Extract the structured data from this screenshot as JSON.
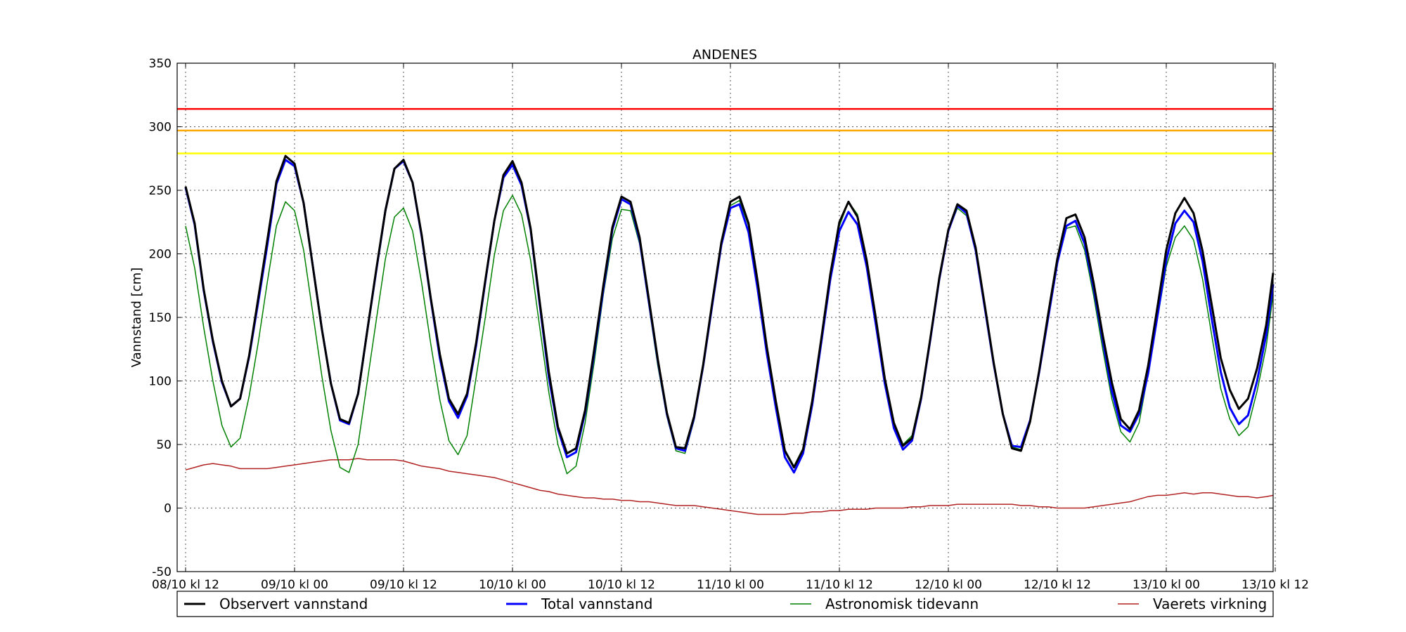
{
  "chart_data": {
    "type": "line",
    "title": "ANDENES",
    "xlabel": "",
    "ylabel": "Vannstand [cm]",
    "ylim": [
      -50,
      350
    ],
    "yticks": [
      -50,
      0,
      50,
      100,
      150,
      200,
      250,
      300,
      350
    ],
    "xlim_hours": [
      0,
      121
    ],
    "xtick_labels": [
      "08/10 kl 12",
      "09/10 kl 00",
      "09/10 kl 12",
      "10/10 kl 00",
      "10/10 kl 12",
      "11/10 kl 00",
      "11/10 kl 12",
      "12/10 kl 00",
      "12/10 kl 12",
      "13/10 kl 00",
      "13/10 kl 12"
    ],
    "grid": true,
    "legend_position": "bottom",
    "thresholds": [
      {
        "value": 314,
        "color": "#ff0000"
      },
      {
        "value": 297,
        "color": "#ffa500"
      },
      {
        "value": 279,
        "color": "#ffff00"
      }
    ],
    "series": [
      {
        "name": "Observert vannstand",
        "color": "#000000",
        "width": 3,
        "step_hours": 1,
        "values": [
          253,
          224,
          172,
          132,
          100,
          80,
          86,
          120,
          165,
          211,
          257,
          277,
          271,
          240,
          191,
          141,
          98,
          70,
          67,
          90,
          139,
          188,
          234,
          267,
          274,
          256,
          215,
          165,
          121,
          86,
          74,
          90,
          130,
          179,
          226,
          262,
          273,
          256,
          220,
          162,
          107,
          64,
          43,
          47,
          77,
          125,
          175,
          221,
          245,
          241,
          213,
          165,
          117,
          75,
          48,
          47,
          72,
          113,
          162,
          209,
          241,
          245,
          224,
          178,
          127,
          84,
          45,
          32,
          46,
          84,
          133,
          184,
          225,
          241,
          229,
          195,
          150,
          102,
          67,
          49,
          55,
          87,
          133,
          181,
          219,
          239,
          234,
          205,
          160,
          114,
          74,
          47,
          45,
          68,
          108,
          153,
          196,
          228,
          231,
          213,
          177,
          136,
          99,
          70,
          62,
          77,
          112,
          157,
          203,
          232,
          244,
          232,
          202,
          160,
          118,
          93,
          78,
          86,
          110,
          144,
          185
        ]
      },
      {
        "name": "Total vannstand",
        "color": "#0000ff",
        "width": 3,
        "step_hours": 1,
        "values": [
          252,
          223,
          171,
          131,
          99,
          80,
          86,
          119,
          162,
          207,
          255,
          274,
          269,
          240,
          191,
          141,
          98,
          69,
          66,
          90,
          139,
          187,
          234,
          267,
          273,
          256,
          214,
          164,
          118,
          84,
          71,
          88,
          128,
          178,
          226,
          260,
          270,
          254,
          219,
          160,
          103,
          62,
          40,
          44,
          75,
          122,
          172,
          219,
          243,
          239,
          211,
          163,
          116,
          74,
          47,
          45,
          71,
          112,
          160,
          207,
          236,
          239,
          217,
          172,
          122,
          79,
          40,
          28,
          43,
          81,
          130,
          180,
          218,
          233,
          223,
          190,
          145,
          98,
          63,
          46,
          53,
          86,
          132,
          180,
          218,
          238,
          232,
          203,
          158,
          113,
          74,
          49,
          48,
          69,
          107,
          150,
          193,
          222,
          226,
          208,
          173,
          132,
          92,
          65,
          60,
          74,
          106,
          150,
          195,
          224,
          234,
          225,
          194,
          149,
          107,
          79,
          66,
          73,
          100,
          136,
          176
        ]
      },
      {
        "name": "Astronomisk tidevann",
        "color": "#008000",
        "width": 1.5,
        "step_hours": 1,
        "values": [
          222,
          189,
          142,
          100,
          65,
          48,
          55,
          88,
          130,
          178,
          222,
          241,
          234,
          203,
          154,
          104,
          61,
          32,
          28,
          50,
          99,
          148,
          196,
          229,
          236,
          218,
          177,
          129,
          85,
          53,
          42,
          57,
          103,
          150,
          199,
          234,
          246,
          231,
          195,
          142,
          91,
          50,
          27,
          33,
          67,
          115,
          168,
          212,
          235,
          234,
          208,
          160,
          112,
          72,
          45,
          43,
          69,
          110,
          159,
          207,
          238,
          242,
          222,
          176,
          127,
          83,
          46,
          33,
          47,
          85,
          133,
          183,
          222,
          241,
          231,
          196,
          151,
          103,
          68,
          50,
          57,
          89,
          134,
          183,
          218,
          236,
          230,
          202,
          158,
          113,
          74,
          48,
          46,
          69,
          107,
          153,
          193,
          220,
          222,
          203,
          167,
          125,
          86,
          60,
          52,
          67,
          106,
          148,
          190,
          213,
          222,
          211,
          180,
          136,
          94,
          70,
          57,
          64,
          92,
          127,
          168
        ]
      },
      {
        "name": "Vaerets virkning",
        "color": "#b22222",
        "width": 1.5,
        "step_hours": 1,
        "values": [
          30,
          32,
          34,
          35,
          34,
          33,
          31,
          31,
          31,
          31,
          32,
          33,
          34,
          35,
          36,
          37,
          38,
          38,
          38,
          39,
          38,
          38,
          38,
          38,
          37,
          35,
          33,
          32,
          31,
          29,
          28,
          27,
          26,
          25,
          24,
          22,
          20,
          18,
          16,
          14,
          13,
          11,
          10,
          9,
          8,
          8,
          7,
          7,
          6,
          6,
          5,
          5,
          4,
          3,
          2,
          2,
          2,
          1,
          0,
          -1,
          -2,
          -3,
          -4,
          -5,
          -5,
          -5,
          -5,
          -4,
          -4,
          -3,
          -3,
          -2,
          -2,
          -1,
          -1,
          -1,
          0,
          0,
          0,
          0,
          1,
          1,
          2,
          2,
          2,
          3,
          3,
          3,
          3,
          3,
          3,
          3,
          2,
          2,
          1,
          1,
          0,
          0,
          0,
          0,
          1,
          2,
          3,
          4,
          5,
          7,
          9,
          10,
          10,
          11,
          12,
          11,
          12,
          12,
          11,
          10,
          9,
          9,
          8,
          9,
          10
        ]
      }
    ]
  }
}
